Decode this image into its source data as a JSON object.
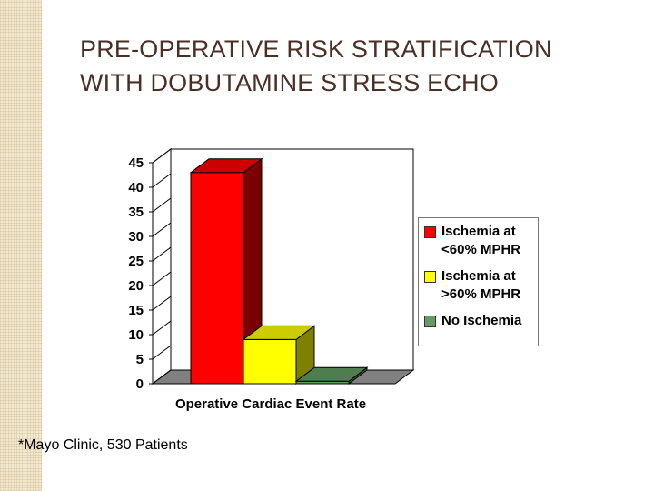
{
  "slide": {
    "title_lines": [
      "PRE-OPERATIVE RISK STRATIFICATION",
      "WITH DOBUTAMINE STRESS ECHO"
    ],
    "footnote": "*Mayo Clinic, 530 Patients"
  },
  "colors": {
    "title": "#4a2f25",
    "side_pattern": "#f3e9cf"
  },
  "chart_data": {
    "type": "bar",
    "title": "",
    "xlabel": "Operative Cardiac Event Rate",
    "ylabel": "",
    "ylim": [
      0,
      45
    ],
    "yticks": [
      0,
      5,
      10,
      15,
      20,
      25,
      30,
      35,
      40,
      45
    ],
    "grid": false,
    "legend_position": "right",
    "categories": [
      "Operative Cardiac Event Rate"
    ],
    "series": [
      {
        "name": "Ischemia at <60% MPHR",
        "values": [
          43
        ],
        "color": "#ff0000",
        "side": "#7a0000",
        "top": "#cc0000"
      },
      {
        "name": "Ischemia at >60% MPHR",
        "values": [
          9
        ],
        "color": "#ffff00",
        "side": "#7f7f00",
        "top": "#cccc00"
      },
      {
        "name": "No Ischemia",
        "values": [
          0.5
        ],
        "color": "#669966",
        "side": "#335533",
        "top": "#4e7d4e"
      }
    ]
  }
}
